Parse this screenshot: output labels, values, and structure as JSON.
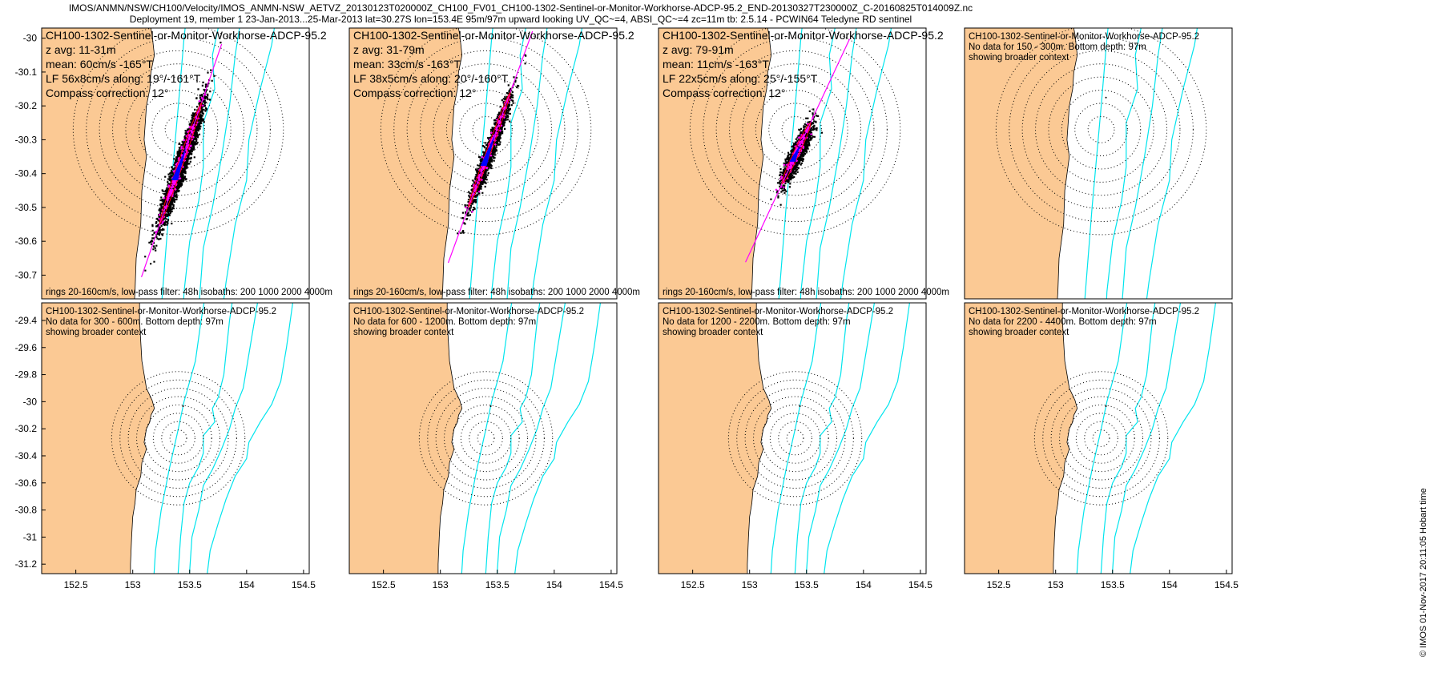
{
  "figure": {
    "title_line1": "IMOS/ANMN/NSW/CH100/Velocity/IMOS_ANMN-NSW_AETVZ_20130123T020000Z_CH100_FV01_CH100-1302-Sentinel-or-Monitor-Workhorse-ADCP-95.2_END-20130327T230000Z_C-20160825T014009Z.nc",
    "title_line2": "Deployment 19, member 1 23-Jan-2013...25-Mar-2013 lat=30.27S lon=153.4E 95m/97m upward looking UV_QC~=4, ABSI_QC~=4 zc=11m tb: 2.5.14 - PCWIN64 Teledyne RD sentinel",
    "credit": "© IMOS 01-Nov-2017 20:11:05 Hobart time",
    "colors": {
      "land": "#fbc994",
      "isobath": "#00e5ee",
      "scatter": "#000000",
      "lowpass": "#ff00ff",
      "principal_axis": "#ff00ff",
      "mean_vector": "#0000ff",
      "lf_ellipse": "#ff0000"
    }
  },
  "chart_data": [
    {
      "type": "scatter",
      "panel": "row1-col1",
      "text_lines": [
        "CH100-1302-Sentinel-or-Monitor-Workhorse-ADCP-95.2",
        "z avg: 11-31m",
        "mean: 60cm/s -165°T",
        "LF 56x8cm/s along: 19°/-161°T",
        "Compass correction: 12°"
      ],
      "footer": "rings 20-160cm/s, low-pass filter: 48h isobaths: 200 1000 2000 4000m",
      "x_ticks": [],
      "y_ticks": [
        "-30",
        "-30.1",
        "-30.2",
        "-30.3",
        "-30.4",
        "-30.5",
        "-30.6",
        "-30.7"
      ],
      "xlim": [
        152.2,
        154.55
      ],
      "ylim": [
        -30.77,
        -29.97
      ],
      "center": [
        153.4,
        -30.27
      ],
      "ring_speeds_cm_s": [
        20,
        40,
        60,
        80,
        100,
        120,
        140,
        160
      ],
      "cloud": {
        "center": [
          153.42,
          -30.37
        ],
        "half_length": 0.21,
        "half_width": 0.045,
        "angle_deg_from_north": 19,
        "n_points": 3500
      },
      "lowpass_points": 220,
      "principal_axis_angle_deg": 19,
      "data_available": true
    },
    {
      "type": "scatter",
      "panel": "row1-col2",
      "text_lines": [
        "CH100-1302-Sentinel-or-Monitor-Workhorse-ADCP-95.2",
        "z avg: 31-79m",
        "mean: 33cm/s -163°T",
        "LF 38x5cm/s along: 20°/-160°T",
        "Compass correction: 12°"
      ],
      "footer": "rings 20-160cm/s, low-pass filter: 48h isobaths: 200 1000 2000 4000m",
      "x_ticks": [],
      "y_ticks": [],
      "xlim": [
        152.2,
        154.55
      ],
      "ylim": [
        -30.77,
        -29.97
      ],
      "center": [
        153.4,
        -30.27
      ],
      "ring_speeds_cm_s": [
        20,
        40,
        60,
        80,
        100,
        120,
        140,
        160
      ],
      "cloud": {
        "center": [
          153.43,
          -30.33
        ],
        "half_length": 0.2,
        "half_width": 0.04,
        "angle_deg_from_north": 20,
        "n_points": 1800
      },
      "lowpass_points": 160,
      "principal_axis_angle_deg": 20,
      "data_available": true
    },
    {
      "type": "scatter",
      "panel": "row1-col3",
      "text_lines": [
        "CH100-1302-Sentinel-or-Monitor-Workhorse-ADCP-95.2",
        "z avg: 79-91m",
        "mean: 11cm/s -163°T",
        "LF 22x5cm/s along: 25°/-155°T",
        "Compass correction: 12°"
      ],
      "footer": "rings 20-160cm/s, low-pass filter: 48h isobaths: 200 1000 2000 4000m",
      "x_ticks": [],
      "y_ticks": [],
      "xlim": [
        152.2,
        154.55
      ],
      "ylim": [
        -30.77,
        -29.97
      ],
      "center": [
        153.4,
        -30.27
      ],
      "ring_speeds_cm_s": [
        20,
        40,
        60,
        80,
        100,
        120,
        140,
        160
      ],
      "cloud": {
        "center": [
          153.41,
          -30.34
        ],
        "half_length": 0.11,
        "half_width": 0.05,
        "angle_deg_from_north": 25,
        "n_points": 1500
      },
      "lowpass_points": 120,
      "principal_axis_angle_deg": 25,
      "data_available": true
    },
    {
      "type": "scatter",
      "panel": "row1-col4",
      "text_lines": [
        "CH100-1302-Sentinel-or-Monitor-Workhorse-ADCP-95.2",
        "No data for 150 - 300m. Bottom depth: 97m",
        "showing broader context"
      ],
      "footer": "",
      "x_ticks": [],
      "y_ticks": [],
      "xlim": [
        152.2,
        154.55
      ],
      "ylim": [
        -30.77,
        -29.97
      ],
      "center": [
        153.4,
        -30.27
      ],
      "ring_speeds_cm_s": [
        20,
        40,
        60,
        80,
        100,
        120,
        140,
        160
      ],
      "data_available": false
    },
    {
      "type": "scatter",
      "panel": "row2-col1",
      "text_lines": [
        "CH100-1302-Sentinel-or-Monitor-Workhorse-ADCP-95.2",
        "No data for 300 - 600m. Bottom depth: 97m",
        "showing broader context"
      ],
      "footer": "",
      "x_ticks": [
        "152.5",
        "153",
        "153.5",
        "154",
        "154.5"
      ],
      "y_ticks": [
        "-29.4",
        "-29.6",
        "-29.8",
        "-30",
        "-30.2",
        "-30.4",
        "-30.6",
        "-30.8",
        "-31",
        "-31.2"
      ],
      "xlim": [
        152.2,
        154.55
      ],
      "ylim": [
        -31.27,
        -29.27
      ],
      "center": [
        153.4,
        -30.27
      ],
      "ring_speeds_cm_s": [
        20,
        40,
        60,
        80,
        100,
        120,
        140,
        160
      ],
      "data_available": false
    },
    {
      "type": "scatter",
      "panel": "row2-col2",
      "text_lines": [
        "CH100-1302-Sentinel-or-Monitor-Workhorse-ADCP-95.2",
        "No data for 600 - 1200m. Bottom depth: 97m",
        "showing broader context"
      ],
      "footer": "",
      "x_ticks": [
        "152.5",
        "153",
        "153.5",
        "154",
        "154.5"
      ],
      "y_ticks": [],
      "xlim": [
        152.2,
        154.55
      ],
      "ylim": [
        -31.27,
        -29.27
      ],
      "center": [
        153.4,
        -30.27
      ],
      "ring_speeds_cm_s": [
        20,
        40,
        60,
        80,
        100,
        120,
        140,
        160
      ],
      "data_available": false
    },
    {
      "type": "scatter",
      "panel": "row2-col3",
      "text_lines": [
        "CH100-1302-Sentinel-or-Monitor-Workhorse-ADCP-95.2",
        "No data for 1200 - 2200m. Bottom depth: 97m",
        "showing broader context"
      ],
      "footer": "",
      "x_ticks": [
        "152.5",
        "153",
        "153.5",
        "154",
        "154.5"
      ],
      "y_ticks": [],
      "xlim": [
        152.2,
        154.55
      ],
      "ylim": [
        -31.27,
        -29.27
      ],
      "center": [
        153.4,
        -30.27
      ],
      "ring_speeds_cm_s": [
        20,
        40,
        60,
        80,
        100,
        120,
        140,
        160
      ],
      "data_available": false
    },
    {
      "type": "scatter",
      "panel": "row2-col4",
      "text_lines": [
        "CH100-1302-Sentinel-or-Monitor-Workhorse-ADCP-95.2",
        "No data for 2200 - 4400m. Bottom depth: 97m",
        "showing broader context"
      ],
      "footer": "",
      "x_ticks": [
        "152.5",
        "153",
        "153.5",
        "154",
        "154.5"
      ],
      "y_ticks": [],
      "xlim": [
        152.2,
        154.55
      ],
      "ylim": [
        -31.27,
        -29.27
      ],
      "center": [
        153.4,
        -30.27
      ],
      "ring_speeds_cm_s": [
        20,
        40,
        60,
        80,
        100,
        120,
        140,
        160
      ],
      "data_available": false
    }
  ]
}
